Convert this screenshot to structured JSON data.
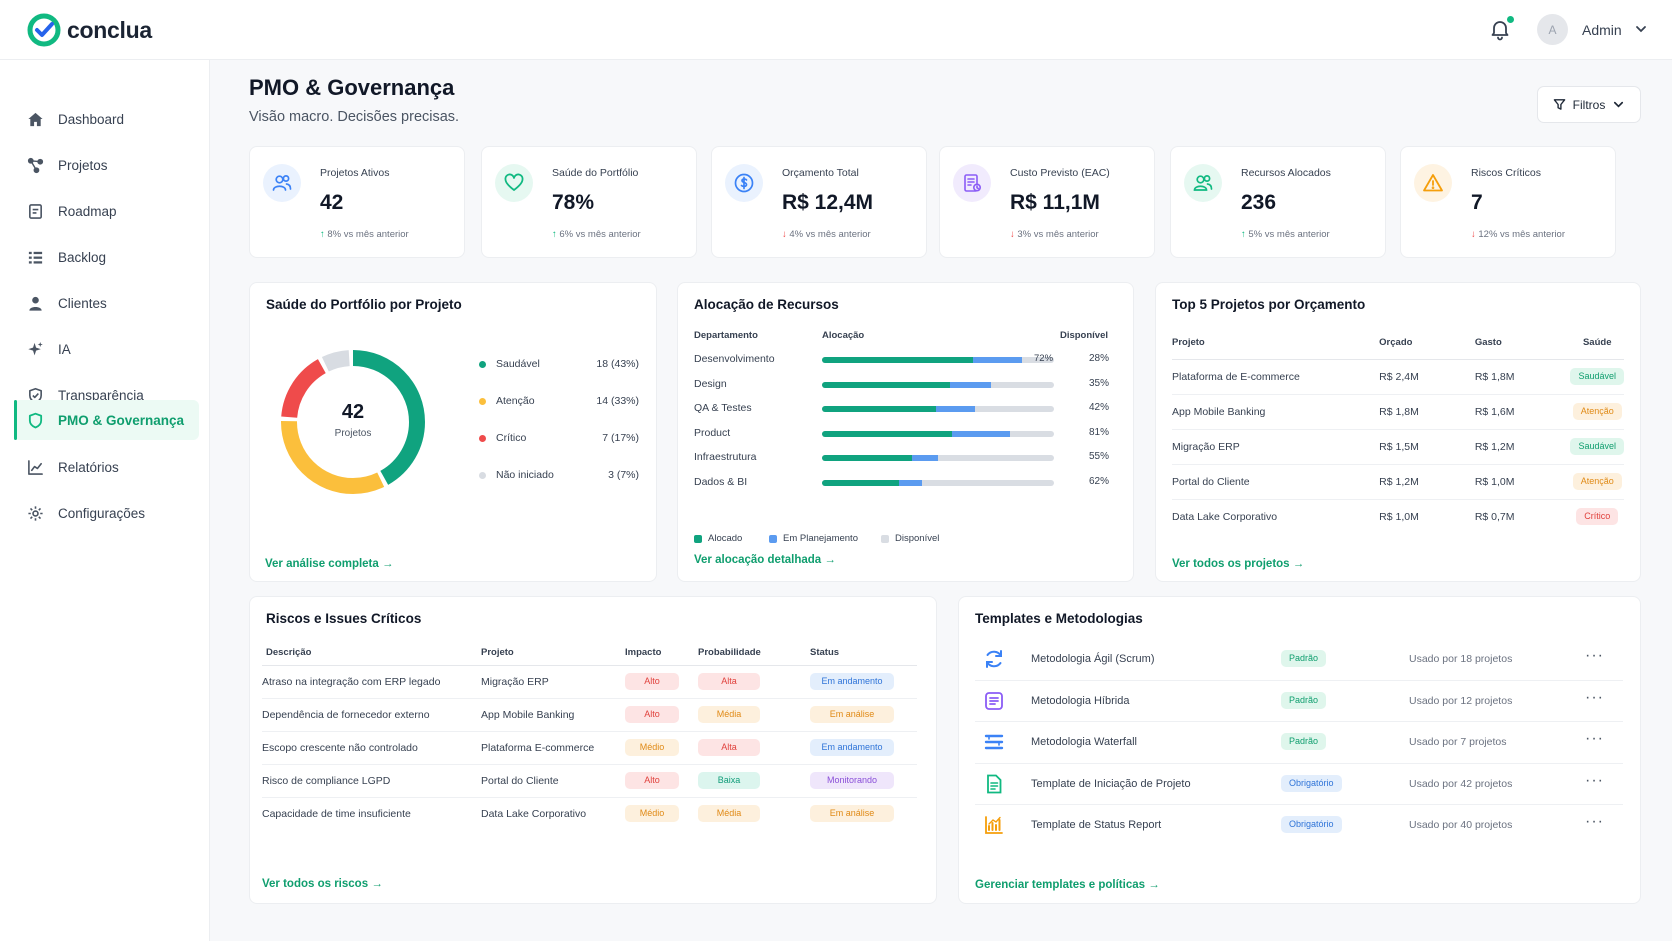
{
  "app": {
    "name": "conclua"
  },
  "header": {
    "user_initial": "A",
    "user_name": "Admin"
  },
  "sidebar": {
    "items": [
      {
        "label": "Dashboard",
        "icon": "home-icon"
      },
      {
        "label": "Projetos",
        "icon": "projects-icon"
      },
      {
        "label": "Roadmap",
        "icon": "roadmap-icon"
      },
      {
        "label": "Backlog",
        "icon": "backlog-icon"
      },
      {
        "label": "Clientes",
        "icon": "clients-icon"
      },
      {
        "label": "IA",
        "icon": "sparkle-icon"
      },
      {
        "label": "Transparência",
        "icon": "shield-check-icon"
      },
      {
        "label": "PMO & Governança",
        "icon": "shield-icon",
        "active": true
      },
      {
        "label": "Relatórios",
        "icon": "chart-icon"
      },
      {
        "label": "Configurações",
        "icon": "gear-icon"
      }
    ]
  },
  "page": {
    "title": "PMO & Governança",
    "subtitle": "Visão macro. Decisões precisas.",
    "filters_label": "Filtros"
  },
  "kpis": [
    {
      "label": "Projetos Ativos",
      "value": "42",
      "trend": "8% vs mês anterior",
      "direction": "up",
      "icon": "users-icon",
      "color": "#3b82f6"
    },
    {
      "label": "Saúde do Portfólio",
      "value": "78%",
      "trend": "6% vs mês anterior",
      "direction": "up",
      "icon": "heart-icon",
      "color": "#10b981"
    },
    {
      "label": "Orçamento Total",
      "value": "R$ 12,4M",
      "trend": "4% vs mês anterior",
      "direction": "down",
      "icon": "dollar-icon",
      "color": "#3b82f6"
    },
    {
      "label": "Custo Previsto (EAC)",
      "value": "R$ 11,1M",
      "trend": "3% vs mês anterior",
      "direction": "down",
      "icon": "invoice-icon",
      "color": "#8b5cf6"
    },
    {
      "label": "Recursos Alocados",
      "value": "236",
      "trend": "5% vs mês anterior",
      "direction": "up",
      "icon": "team-icon",
      "color": "#10b981"
    },
    {
      "label": "Riscos Críticos",
      "value": "7",
      "trend": "12% vs mês anterior",
      "direction": "down",
      "icon": "warning-icon",
      "color": "#f59e0b"
    }
  ],
  "portfolio": {
    "title": "Saúde do Portfólio por Projeto",
    "center_value": "42",
    "center_label": "Projetos",
    "link": "Ver análise completa",
    "chart_data": {
      "type": "pie",
      "title": "Saúde do Portfólio por Projeto",
      "categories": [
        "Saudável",
        "Atenção",
        "Crítico",
        "Não iniciado"
      ],
      "values": [
        18,
        14,
        7,
        3
      ],
      "labels": [
        "18 (43%)",
        "14 (33%)",
        "7 (17%)",
        "3 (7%)"
      ],
      "colors": [
        "#10a37f",
        "#fbbf3c",
        "#ef4b4b",
        "#d8dce2"
      ]
    }
  },
  "alloc": {
    "title": "Alocação de Recursos",
    "col_dept": "Departamento",
    "col_alloc": "Alocação",
    "col_disp": "Disponível",
    "link": "Ver alocação detalhada",
    "chart_data": {
      "type": "bar",
      "title": "Alocação de Recursos",
      "categories": [
        "Desenvolvimento",
        "Design",
        "QA & Testes",
        "Product",
        "Infraestrutura",
        "Dados & BI"
      ],
      "series": [
        {
          "name": "Alocado",
          "values": [
            65,
            55,
            49,
            56,
            39,
            33
          ]
        },
        {
          "name": "Em Planejamento",
          "values": [
            21,
            18,
            17,
            25,
            11,
            10
          ]
        },
        {
          "name": "Disponível",
          "values": [
            28,
            35,
            42,
            81,
            55,
            62
          ]
        }
      ],
      "bar_label": "72%",
      "disp_labels": [
        "28%",
        "35%",
        "42%",
        "81%",
        "55%",
        "62%"
      ],
      "colors": [
        "#10a37f",
        "#5b9bf0",
        "#d9dde3"
      ]
    }
  },
  "top5": {
    "title": "Top 5 Projetos por Orçamento",
    "columns": [
      "Projeto",
      "Orçado",
      "Gasto",
      "Saúde"
    ],
    "rows": [
      {
        "name": "Plataforma de E-commerce",
        "budget": "R$ 2,4M",
        "spent": "R$ 1,8M",
        "health": "Saudável",
        "color": "green"
      },
      {
        "name": "App Mobile Banking",
        "budget": "R$ 1,8M",
        "spent": "R$ 1,6M",
        "health": "Atenção",
        "color": "orange"
      },
      {
        "name": "Migração ERP",
        "budget": "R$ 1,5M",
        "spent": "R$ 1,2M",
        "health": "Saudável",
        "color": "green"
      },
      {
        "name": "Portal do Cliente",
        "budget": "R$ 1,2M",
        "spent": "R$ 1,0M",
        "health": "Atenção",
        "color": "orange"
      },
      {
        "name": "Data Lake Corporativo",
        "budget": "R$ 1,0M",
        "spent": "R$ 0,7M",
        "health": "Crítico",
        "color": "red"
      }
    ],
    "link": "Ver todos os projetos"
  },
  "risks": {
    "title": "Riscos e Issues Críticos",
    "columns": [
      "Descrição",
      "Projeto",
      "Impacto",
      "Probabilidade",
      "Status"
    ],
    "rows": [
      {
        "desc": "Atraso na integração com ERP legado",
        "project": "Migração ERP",
        "impact": "Alto",
        "impact_c": "red",
        "prob": "Alta",
        "prob_c": "red",
        "status": "Em andamento",
        "status_c": "blue"
      },
      {
        "desc": "Dependência de fornecedor externo",
        "project": "App Mobile Banking",
        "impact": "Alto",
        "impact_c": "red",
        "prob": "Média",
        "prob_c": "orange",
        "status": "Em análise",
        "status_c": "orange"
      },
      {
        "desc": "Escopo crescente não controlado",
        "project": "Plataforma E-commerce",
        "impact": "Médio",
        "impact_c": "orange",
        "prob": "Alta",
        "prob_c": "red",
        "status": "Em andamento",
        "status_c": "blue"
      },
      {
        "desc": "Risco de compliance LGPD",
        "project": "Portal do Cliente",
        "impact": "Alto",
        "impact_c": "red",
        "prob": "Baixa",
        "prob_c": "teal",
        "status": "Monitorando",
        "status_c": "purple"
      },
      {
        "desc": "Capacidade de time insuficiente",
        "project": "Data Lake Corporativo",
        "impact": "Médio",
        "impact_c": "orange",
        "prob": "Média",
        "prob_c": "orange",
        "status": "Em análise",
        "status_c": "orange"
      }
    ],
    "link": "Ver todos os riscos"
  },
  "templates": {
    "title": "Templates e Metodologias",
    "rows": [
      {
        "name": "Metodologia Ágil (Scrum)",
        "badge": "Padrão",
        "badge_c": "green",
        "used": "Usado por 18 projetos",
        "icon": "cycle-icon",
        "color": "#3b82f6"
      },
      {
        "name": "Metodologia Híbrida",
        "badge": "Padrão",
        "badge_c": "green",
        "used": "Usado por 12 projetos",
        "icon": "hybrid-icon",
        "color": "#8b5cf6"
      },
      {
        "name": "Metodologia Waterfall",
        "badge": "Padrão",
        "badge_c": "green",
        "used": "Usado por 7 projetos",
        "icon": "waterfall-icon",
        "color": "#3b82f6"
      },
      {
        "name": "Template de Iniciação de Projeto",
        "badge": "Obrigatório",
        "badge_c": "blue",
        "used": "Usado por 42 projetos",
        "icon": "document-icon",
        "color": "#10b981"
      },
      {
        "name": "Template de Status Report",
        "badge": "Obrigatório",
        "badge_c": "blue",
        "used": "Usado por 40 projetos",
        "icon": "report-icon",
        "color": "#f59e0b"
      }
    ],
    "more_label": "···",
    "link": "Gerenciar templates e políticas"
  }
}
